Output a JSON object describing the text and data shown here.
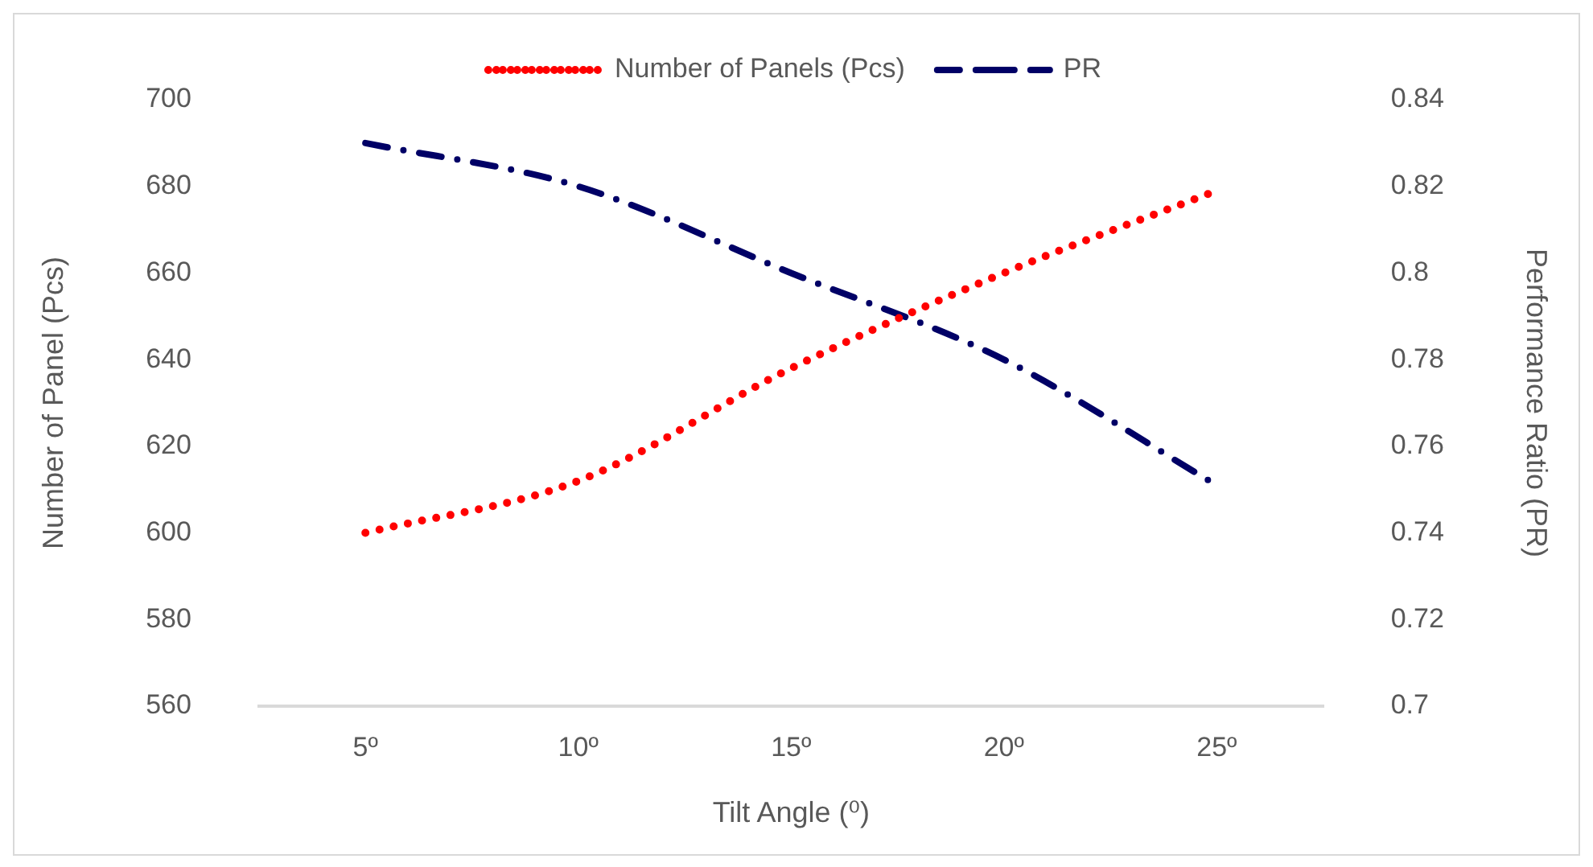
{
  "chart_data": {
    "type": "line",
    "categories": [
      "5º",
      "10º",
      "15º",
      "20º",
      "25º"
    ],
    "xlabel": "Tilt Angle (⁰)",
    "ylabel": "Number of Panel (Pcs)",
    "y2label": "Performance Ratio (PR)",
    "ylim": [
      560,
      700
    ],
    "yticks": [
      560,
      580,
      600,
      620,
      640,
      660,
      680,
      700
    ],
    "y2lim": [
      0.7,
      0.84
    ],
    "y2ticks": [
      {
        "value": 0.7,
        "label": "0.7"
      },
      0.72,
      0.74,
      0.76,
      0.78,
      {
        "value": 0.8,
        "label": "0.8"
      },
      0.82,
      0.84
    ],
    "grid": false,
    "legend": "top",
    "marker": "none",
    "series": [
      {
        "name": "Number of Panels (Pcs)",
        "color": "#ff0000",
        "line_style": "dotted",
        "values": [
          600,
          612,
          638,
          660,
          679
        ]
      },
      {
        "name": "PR",
        "color": "#000066",
        "line_style": "dashdot",
        "axis": "y2",
        "values": [
          0.83,
          0.82,
          0.8,
          0.78,
          0.751
        ]
      }
    ]
  }
}
